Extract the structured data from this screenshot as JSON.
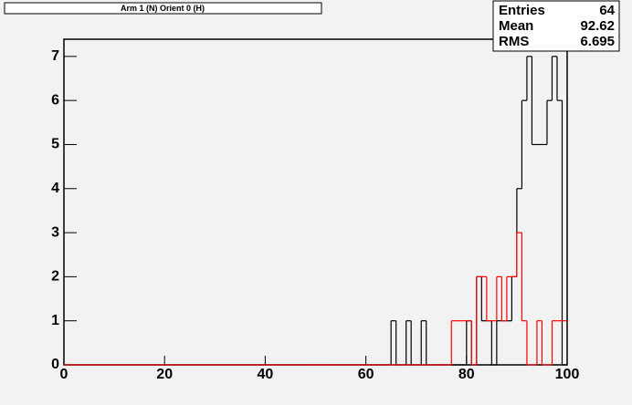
{
  "chart_data": {
    "type": "histogram",
    "title": "Arm 1 (N) Orient 0 (H)",
    "bins": [
      0,
      1,
      2,
      3,
      4,
      5,
      6,
      7,
      8,
      9,
      10,
      11,
      12,
      13,
      14,
      15,
      16,
      17,
      18,
      19,
      20,
      21,
      22,
      23,
      24,
      25,
      26,
      27,
      28,
      29,
      30,
      31,
      32,
      33,
      34,
      35,
      36,
      37,
      38,
      39,
      40,
      41,
      42,
      43,
      44,
      45,
      46,
      47,
      48,
      49,
      50,
      51,
      52,
      53,
      54,
      55,
      56,
      57,
      58,
      59,
      60,
      61,
      62,
      63,
      64,
      65,
      66,
      67,
      68,
      69,
      70,
      71,
      72,
      73,
      74,
      75,
      76,
      77,
      78,
      79,
      80,
      81,
      82,
      83,
      84,
      85,
      86,
      87,
      88,
      89,
      90,
      91,
      92,
      93,
      94,
      95,
      96,
      97,
      98,
      99,
      100
    ],
    "series": [
      {
        "color": "#000000",
        "values": [
          0,
          0,
          0,
          0,
          0,
          0,
          0,
          0,
          0,
          0,
          0,
          0,
          0,
          0,
          0,
          0,
          0,
          0,
          0,
          0,
          0,
          0,
          0,
          0,
          0,
          0,
          0,
          0,
          0,
          0,
          0,
          0,
          0,
          0,
          0,
          0,
          0,
          0,
          0,
          0,
          0,
          0,
          0,
          0,
          0,
          0,
          0,
          0,
          0,
          0,
          0,
          0,
          0,
          0,
          0,
          0,
          0,
          0,
          0,
          0,
          0,
          0,
          0,
          0,
          0,
          1,
          0,
          0,
          1,
          0,
          0,
          1,
          0,
          0,
          0,
          0,
          0,
          0,
          0,
          0,
          1,
          0,
          2,
          1,
          1,
          0,
          1,
          1,
          1,
          2,
          4,
          6,
          7,
          5,
          5,
          5,
          6,
          7,
          6,
          0
        ]
      },
      {
        "color": "#ff0000",
        "values": [
          0,
          0,
          0,
          0,
          0,
          0,
          0,
          0,
          0,
          0,
          0,
          0,
          0,
          0,
          0,
          0,
          0,
          0,
          0,
          0,
          0,
          0,
          0,
          0,
          0,
          0,
          0,
          0,
          0,
          0,
          0,
          0,
          0,
          0,
          0,
          0,
          0,
          0,
          0,
          0,
          0,
          0,
          0,
          0,
          0,
          0,
          0,
          0,
          0,
          0,
          0,
          0,
          0,
          0,
          0,
          0,
          0,
          0,
          0,
          0,
          0,
          0,
          0,
          0,
          0,
          0,
          0,
          0,
          0,
          0,
          0,
          0,
          0,
          0,
          0,
          0,
          0,
          1,
          1,
          1,
          1,
          0,
          2,
          2,
          1,
          1,
          2,
          1,
          2,
          2,
          3,
          1,
          0,
          0,
          1,
          0,
          0,
          1,
          1,
          1
        ]
      }
    ],
    "xlim": [
      0,
      100
    ],
    "xticks": [
      0,
      20,
      40,
      60,
      80,
      100
    ],
    "ylim": [
      0,
      7.39
    ],
    "yticks": [
      0,
      1,
      2,
      3,
      4,
      5,
      6,
      7
    ],
    "stats": [
      {
        "label": "Entries",
        "value": 64
      },
      {
        "label": "Mean",
        "value": 92.62
      },
      {
        "label": "RMS",
        "value": 6.695
      }
    ]
  }
}
